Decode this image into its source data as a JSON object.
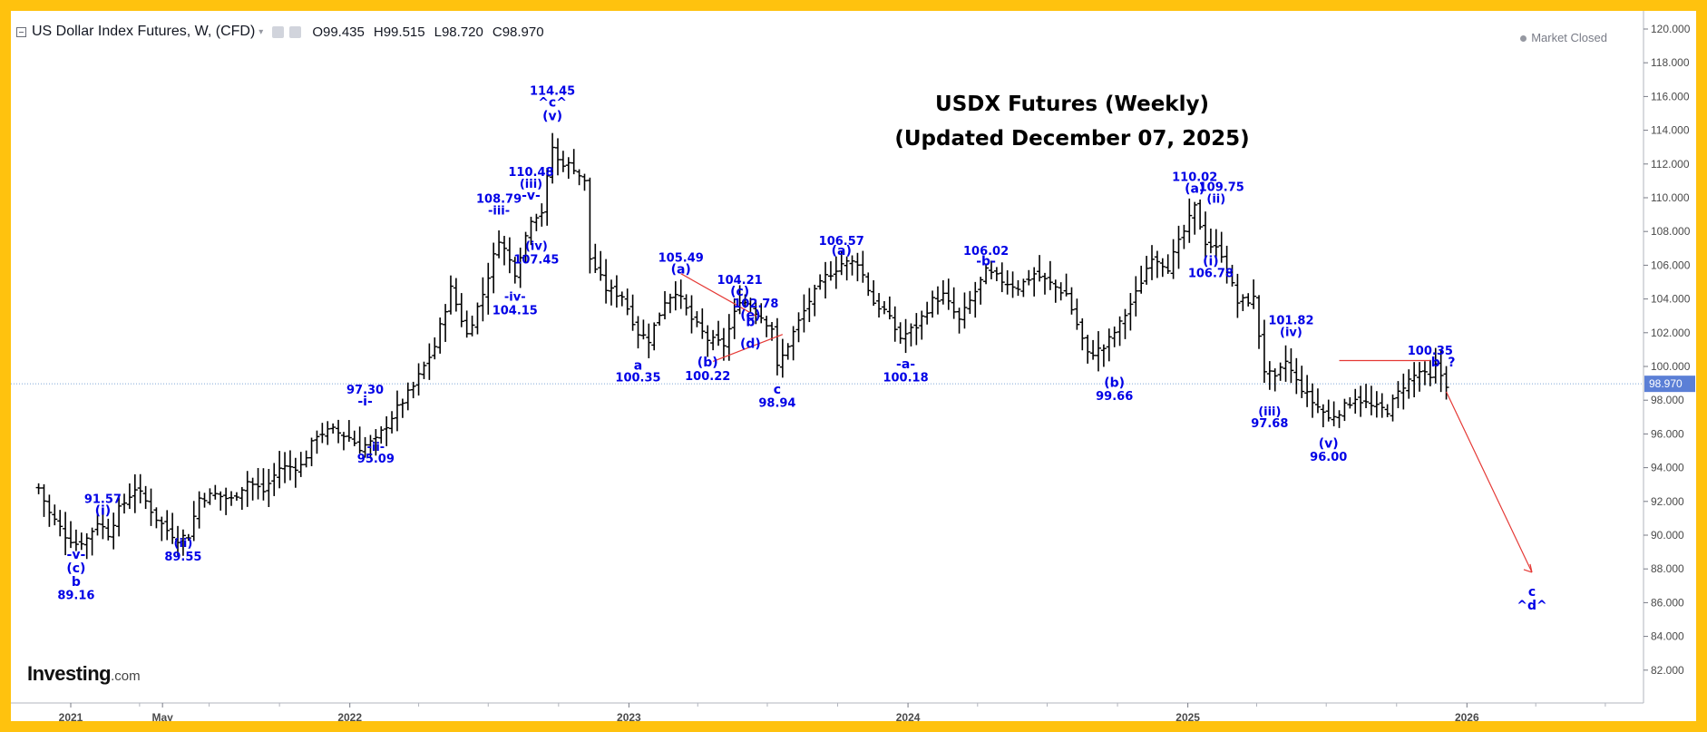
{
  "header": {
    "symbol": "US Dollar Index Futures, W, (CFD)",
    "open_label": "O",
    "open": "99.435",
    "high_label": "H",
    "high": "99.515",
    "low_label": "L",
    "low": "98.720",
    "close_label": "C",
    "close": "98.970"
  },
  "status": {
    "market": "Market Closed"
  },
  "logo": {
    "name": "Investing",
    "suffix": ".com"
  },
  "colors": {
    "frame": "#FFC20E",
    "bars": "#000000",
    "labels": "#0000e6",
    "annotation_line": "#e53935",
    "price_tag": "#5b7fd6"
  },
  "icons": [
    "collapse-icon",
    "settings-icon",
    "source-icon",
    "market-status-dot"
  ],
  "chart_data": {
    "type": "ohlc",
    "title": "USDX Futures (Weekly)",
    "subtitle": "(Updated December 07, 2025)",
    "ylim": [
      81,
      121
    ],
    "y_ticks": [
      "82.000",
      "84.000",
      "86.000",
      "88.000",
      "90.000",
      "92.000",
      "94.000",
      "96.000",
      "98.000",
      "100.000",
      "102.000",
      "104.000",
      "106.000",
      "108.000",
      "110.000",
      "112.000",
      "114.000",
      "116.000",
      "118.000",
      "120.000"
    ],
    "x_ticks": [
      {
        "label": "2021",
        "date": "2021-01-01"
      },
      {
        "label": "May",
        "date": "2021-05-01"
      },
      {
        "label": "2022",
        "date": "2022-01-01"
      },
      {
        "label": "2023",
        "date": "2023-01-01"
      },
      {
        "label": "2024",
        "date": "2024-01-01"
      },
      {
        "label": "2025",
        "date": "2025-01-01"
      },
      {
        "label": "2026",
        "date": "2026-01-01"
      }
    ],
    "last_price": "98.970",
    "path": [
      [
        "2020-11-20",
        92.8
      ],
      [
        "2020-12-04",
        91.3
      ],
      [
        "2020-12-25",
        90.0
      ],
      [
        "2021-01-08",
        89.5
      ],
      [
        "2021-01-22",
        89.8
      ],
      [
        "2021-02-05",
        90.8
      ],
      [
        "2021-02-19",
        90.1
      ],
      [
        "2021-03-05",
        91.5
      ],
      [
        "2021-03-26",
        92.8
      ],
      [
        "2021-04-09",
        92.0
      ],
      [
        "2021-04-23",
        91.0
      ],
      [
        "2021-05-07",
        90.3
      ],
      [
        "2021-05-21",
        89.8
      ],
      [
        "2021-06-04",
        90.0
      ],
      [
        "2021-06-18",
        92.2
      ],
      [
        "2021-07-09",
        92.4
      ],
      [
        "2021-07-30",
        92.1
      ],
      [
        "2021-08-20",
        93.2
      ],
      [
        "2021-09-10",
        92.6
      ],
      [
        "2021-10-01",
        94.0
      ],
      [
        "2021-10-29",
        94.1
      ],
      [
        "2021-11-19",
        96.0
      ],
      [
        "2021-12-10",
        96.2
      ],
      [
        "2021-12-31",
        95.8
      ],
      [
        "2022-01-14",
        95.2
      ],
      [
        "2022-02-04",
        95.6
      ],
      [
        "2022-03-04",
        97.5
      ],
      [
        "2022-03-25",
        98.8
      ],
      [
        "2022-04-22",
        101.2
      ],
      [
        "2022-05-13",
        104.6
      ],
      [
        "2022-06-03",
        101.9
      ],
      [
        "2022-06-24",
        104.3
      ],
      [
        "2022-07-15",
        107.6
      ],
      [
        "2022-08-05",
        105.6
      ],
      [
        "2022-08-26",
        108.8
      ],
      [
        "2022-09-09",
        109.2
      ],
      [
        "2022-09-23",
        113.0
      ],
      [
        "2022-09-30",
        112.2
      ],
      [
        "2022-10-21",
        111.8
      ],
      [
        "2022-11-04",
        110.9
      ],
      [
        "2022-11-11",
        106.4
      ],
      [
        "2022-12-02",
        104.6
      ],
      [
        "2022-12-23",
        104.2
      ],
      [
        "2023-01-13",
        102.0
      ],
      [
        "2023-01-27",
        101.6
      ],
      [
        "2023-02-17",
        103.9
      ],
      [
        "2023-03-03",
        104.5
      ],
      [
        "2023-03-24",
        102.8
      ],
      [
        "2023-04-14",
        101.6
      ],
      [
        "2023-05-05",
        101.3
      ],
      [
        "2023-05-26",
        104.0
      ],
      [
        "2023-06-09",
        103.6
      ],
      [
        "2023-07-07",
        102.3
      ],
      [
        "2023-07-14",
        99.9
      ],
      [
        "2023-08-04",
        102.0
      ],
      [
        "2023-08-25",
        103.9
      ],
      [
        "2023-09-15",
        105.3
      ],
      [
        "2023-10-06",
        106.1
      ],
      [
        "2023-10-27",
        106.2
      ],
      [
        "2023-11-17",
        103.8
      ],
      [
        "2023-12-01",
        103.3
      ],
      [
        "2023-12-22",
        101.7
      ],
      [
        "2024-01-12",
        102.4
      ],
      [
        "2024-02-02",
        103.9
      ],
      [
        "2024-02-16",
        104.2
      ],
      [
        "2024-03-08",
        102.7
      ],
      [
        "2024-04-12",
        105.6
      ],
      [
        "2024-05-03",
        105.1
      ],
      [
        "2024-05-24",
        104.7
      ],
      [
        "2024-06-14",
        105.5
      ],
      [
        "2024-07-05",
        104.9
      ],
      [
        "2024-07-26",
        104.3
      ],
      [
        "2024-08-23",
        100.7
      ],
      [
        "2024-09-13",
        101.1
      ],
      [
        "2024-10-04",
        102.5
      ],
      [
        "2024-10-25",
        104.3
      ],
      [
        "2024-11-15",
        106.6
      ],
      [
        "2024-12-06",
        105.9
      ],
      [
        "2024-12-27",
        108.0
      ],
      [
        "2025-01-10",
        109.4
      ],
      [
        "2025-01-24",
        107.4
      ],
      [
        "2025-02-14",
        106.7
      ],
      [
        "2025-03-07",
        103.8
      ],
      [
        "2025-03-28",
        104.0
      ],
      [
        "2025-04-11",
        99.8
      ],
      [
        "2025-04-25",
        99.2
      ],
      [
        "2025-05-09",
        100.3
      ],
      [
        "2025-05-23",
        99.1
      ],
      [
        "2025-06-13",
        97.9
      ],
      [
        "2025-06-27",
        97.3
      ],
      [
        "2025-07-04",
        96.9
      ],
      [
        "2025-07-25",
        97.6
      ],
      [
        "2025-08-08",
        98.2
      ],
      [
        "2025-08-29",
        97.6
      ],
      [
        "2025-09-19",
        97.4
      ],
      [
        "2025-10-10",
        98.9
      ],
      [
        "2025-10-31",
        99.7
      ],
      [
        "2025-11-14",
        99.2
      ],
      [
        "2025-11-21",
        100.0
      ],
      [
        "2025-12-05",
        98.97
      ]
    ],
    "annotations": [
      {
        "text": "91.57",
        "date": "2021-02-12",
        "y": 91.9,
        "pos": "above"
      },
      {
        "text": "(i)",
        "date": "2021-02-12",
        "y": 91.2,
        "pos": "above"
      },
      {
        "text": "-v-",
        "date": "2021-01-08",
        "y": 88.6,
        "pos": "below"
      },
      {
        "text": "(c)",
        "date": "2021-01-08",
        "y": 87.8,
        "pos": "below"
      },
      {
        "text": "b",
        "date": "2021-01-08",
        "y": 87.0,
        "pos": "below"
      },
      {
        "text": "89.16",
        "date": "2021-01-08",
        "y": 86.2,
        "pos": "below"
      },
      {
        "text": "(ii)",
        "date": "2021-05-28",
        "y": 89.3,
        "pos": "below"
      },
      {
        "text": "89.55",
        "date": "2021-05-28",
        "y": 88.5,
        "pos": "below"
      },
      {
        "text": "97.30",
        "date": "2022-01-21",
        "y": 98.4,
        "pos": "above"
      },
      {
        "text": "-i-",
        "date": "2022-01-21",
        "y": 97.7,
        "pos": "above"
      },
      {
        "text": "-ii-",
        "date": "2022-02-04",
        "y": 95.0,
        "pos": "below"
      },
      {
        "text": "95.09",
        "date": "2022-02-04",
        "y": 94.3,
        "pos": "below"
      },
      {
        "text": "108.79",
        "date": "2022-07-15",
        "y": 109.7,
        "pos": "above"
      },
      {
        "text": "-iii-",
        "date": "2022-07-15",
        "y": 109.0,
        "pos": "above"
      },
      {
        "text": "-iv-",
        "date": "2022-08-05",
        "y": 103.9,
        "pos": "below"
      },
      {
        "text": "104.15",
        "date": "2022-08-05",
        "y": 103.1,
        "pos": "below"
      },
      {
        "text": "110.48",
        "date": "2022-08-26",
        "y": 111.3,
        "pos": "above"
      },
      {
        "text": "(iii)",
        "date": "2022-08-26",
        "y": 110.6,
        "pos": "above"
      },
      {
        "text": "-v-",
        "date": "2022-08-26",
        "y": 109.9,
        "pos": "above"
      },
      {
        "text": "(iv)",
        "date": "2022-09-02",
        "y": 106.9,
        "pos": "below"
      },
      {
        "text": "107.45",
        "date": "2022-09-02",
        "y": 106.1,
        "pos": "below"
      },
      {
        "text": "114.45",
        "date": "2022-09-23",
        "y": 116.1,
        "pos": "above"
      },
      {
        "text": "^c^",
        "date": "2022-09-23",
        "y": 115.4,
        "pos": "above"
      },
      {
        "text": "(v)",
        "date": "2022-09-23",
        "y": 114.6,
        "pos": "above"
      },
      {
        "text": "a",
        "date": "2023-01-13",
        "y": 99.8,
        "pos": "below"
      },
      {
        "text": "100.35",
        "date": "2023-01-13",
        "y": 99.1,
        "pos": "below"
      },
      {
        "text": "105.49",
        "date": "2023-03-10",
        "y": 106.2,
        "pos": "above"
      },
      {
        "text": "(a)",
        "date": "2023-03-10",
        "y": 105.5,
        "pos": "above"
      },
      {
        "text": "(b)",
        "date": "2023-04-14",
        "y": 100.0,
        "pos": "below"
      },
      {
        "text": "100.22",
        "date": "2023-04-14",
        "y": 99.2,
        "pos": "below"
      },
      {
        "text": "104.21",
        "date": "2023-05-26",
        "y": 104.9,
        "pos": "above"
      },
      {
        "text": "(c)",
        "date": "2023-05-26",
        "y": 104.2,
        "pos": "above"
      },
      {
        "text": "102.78",
        "date": "2023-06-16",
        "y": 103.5,
        "pos": "above"
      },
      {
        "text": "(e)",
        "date": "2023-06-09",
        "y": 102.8,
        "pos": "above"
      },
      {
        "text": "b",
        "date": "2023-06-09",
        "y": 102.4,
        "pos": "above"
      },
      {
        "text": "(d)",
        "date": "2023-06-09",
        "y": 101.1,
        "pos": "below"
      },
      {
        "text": "c",
        "date": "2023-07-14",
        "y": 98.4,
        "pos": "below"
      },
      {
        "text": "98.94",
        "date": "2023-07-14",
        "y": 97.6,
        "pos": "below"
      },
      {
        "text": "106.57",
        "date": "2023-10-06",
        "y": 107.2,
        "pos": "above"
      },
      {
        "text": "(a)",
        "date": "2023-10-06",
        "y": 106.6,
        "pos": "above"
      },
      {
        "text": "-a-",
        "date": "2023-12-29",
        "y": 99.9,
        "pos": "below"
      },
      {
        "text": "100.18",
        "date": "2023-12-29",
        "y": 99.1,
        "pos": "below"
      },
      {
        "text": "106.02",
        "date": "2024-04-12",
        "y": 106.6,
        "pos": "above"
      },
      {
        "text": "-b-",
        "date": "2024-04-12",
        "y": 106.0,
        "pos": "above"
      },
      {
        "text": "(b)",
        "date": "2024-09-27",
        "y": 98.8,
        "pos": "below"
      },
      {
        "text": "99.66",
        "date": "2024-09-27",
        "y": 98.0,
        "pos": "below"
      },
      {
        "text": "110.02",
        "date": "2025-01-10",
        "y": 111.0,
        "pos": "above"
      },
      {
        "text": "(a)",
        "date": "2025-01-10",
        "y": 110.3,
        "pos": "above"
      },
      {
        "text": "109.75",
        "date": "2025-02-14",
        "y": 110.4,
        "pos": "above"
      },
      {
        "text": "(ii)",
        "date": "2025-02-07",
        "y": 109.7,
        "pos": "above"
      },
      {
        "text": "(i)",
        "date": "2025-01-31",
        "y": 106.0,
        "pos": "below"
      },
      {
        "text": "106.78",
        "date": "2025-01-31",
        "y": 105.3,
        "pos": "below"
      },
      {
        "text": "101.82",
        "date": "2025-05-16",
        "y": 102.5,
        "pos": "above"
      },
      {
        "text": "(iv)",
        "date": "2025-05-16",
        "y": 101.8,
        "pos": "above"
      },
      {
        "text": "(iii)",
        "date": "2025-04-18",
        "y": 97.1,
        "pos": "below"
      },
      {
        "text": "97.68",
        "date": "2025-04-18",
        "y": 96.4,
        "pos": "below"
      },
      {
        "text": "(v)",
        "date": "2025-07-04",
        "y": 95.2,
        "pos": "below"
      },
      {
        "text": "96.00",
        "date": "2025-07-04",
        "y": 94.4,
        "pos": "below"
      },
      {
        "text": "100.35",
        "date": "2025-11-14",
        "y": 100.7,
        "pos": "above"
      },
      {
        "text": "b",
        "date": "2025-11-21",
        "y": 100.0,
        "pos": "above"
      },
      {
        "text": "?",
        "date": "2025-12-12",
        "y": 100.0,
        "pos": "above"
      },
      {
        "text": "c",
        "date": "2026-03-27",
        "y": 86.4,
        "pos": "above"
      },
      {
        "text": "^d^",
        "date": "2026-03-27",
        "y": 85.6,
        "pos": "above"
      }
    ],
    "trend_lines": [
      {
        "from": [
          "2023-03-10",
          105.5
        ],
        "to": [
          "2023-06-16",
          103.0
        ]
      },
      {
        "from": [
          "2023-04-21",
          100.3
        ],
        "to": [
          "2023-07-21",
          101.9
        ]
      },
      {
        "from": [
          "2025-07-18",
          100.35
        ],
        "to": [
          "2025-11-14",
          100.35
        ]
      },
      {
        "from": [
          "2025-12-05",
          98.5
        ],
        "to": [
          "2026-03-27",
          87.8
        ]
      }
    ]
  }
}
